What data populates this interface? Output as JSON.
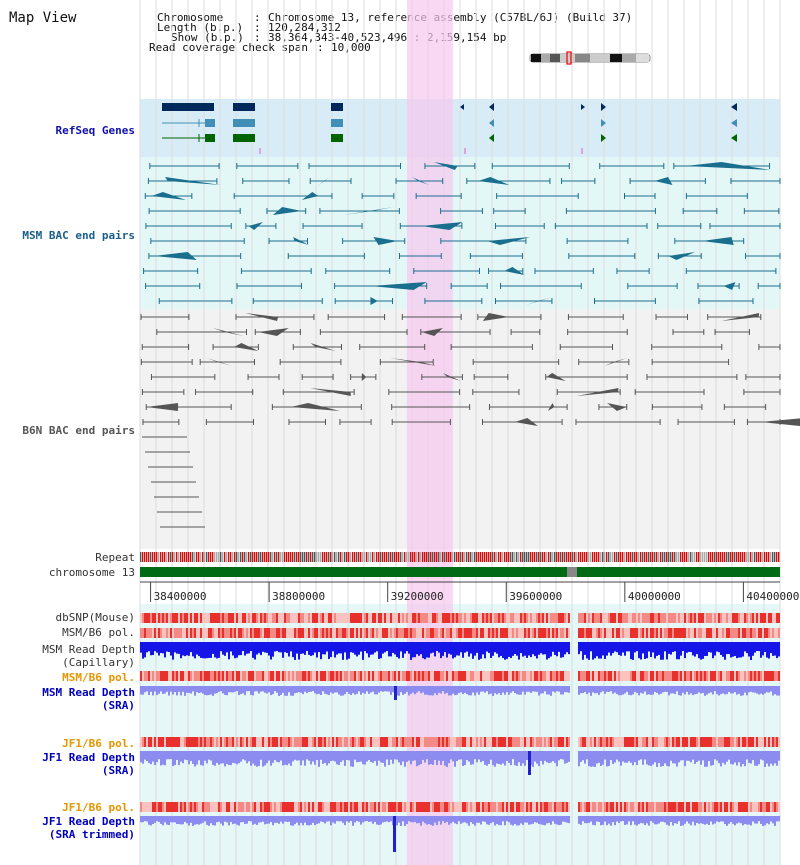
{
  "view_title": "Map View",
  "header": {
    "chromosome_label": "Chromosome",
    "chromosome_value": "Chromosome 13, reference assembly (C57BL/6J) (Build 37)",
    "length_label": "Length (b.p.)",
    "length_value": "120,284,312",
    "show_label": "Show (b.p.)",
    "show_value": "38,364,343-40,523,496 : 2,159,154 bp",
    "coverage_label": "Read coverage check span",
    "coverage_value": "10,000"
  },
  "tracks": {
    "refseq": "RefSeq Genes",
    "msm_bac": "MSM BAC end pairs",
    "b6n_bac": "B6N BAC end pairs",
    "repeat": "Repeat",
    "chromosome": "chromosome 13",
    "dbsnp": "dbSNP(Mouse)",
    "msm_b6_pol": "MSM/B6 pol.",
    "msm_depth_cap_1": "MSM Read Depth",
    "msm_depth_cap_2": "(Capillary)",
    "msm_b6_pol_2": "MSM/B6 pol.",
    "msm_depth_sra_1": "MSM Read Depth",
    "msm_depth_sra_2": "(SRA)",
    "jf1_b6_pol": "JF1/B6 pol.",
    "jf1_depth_sra_1": "JF1 Read Depth",
    "jf1_depth_sra_2": "(SRA)",
    "jf1_b6_pol_2": "JF1/B6 pol.",
    "jf1_depth_trim_1": "JF1 Read Depth",
    "jf1_depth_trim_2": "(SRA trimmed)"
  },
  "axis": {
    "ticks": [
      "38400000",
      "38800000",
      "39200000",
      "39600000",
      "40000000",
      "40400000"
    ],
    "tick_values": [
      38400000,
      38800000,
      39200000,
      39600000,
      40000000,
      40400000
    ],
    "view_start": 38364343,
    "view_end": 40523496
  },
  "highlight": {
    "start": 39265000,
    "end": 39420000
  },
  "colors": {
    "refseq_bg": "#d8ecf7",
    "msm_bg": "#e4f7f7",
    "b6n_bg": "#f2f2f2",
    "read_bg": "#e6f7f7",
    "highlight": "#f7c8ee",
    "refseq_dark": "#00285a",
    "refseq_mid": "#3f8fb7",
    "refseq_green": "#006400",
    "msm_line": "#1a6f8f",
    "b6n_line": "#555555",
    "chrom_green": "#006b14",
    "depth_blue": "#1515e8",
    "depth_light": "#8c8cf0",
    "pol_red": "#e8302c",
    "orange_label": "#e69500",
    "blue_label": "#0000bb"
  }
}
